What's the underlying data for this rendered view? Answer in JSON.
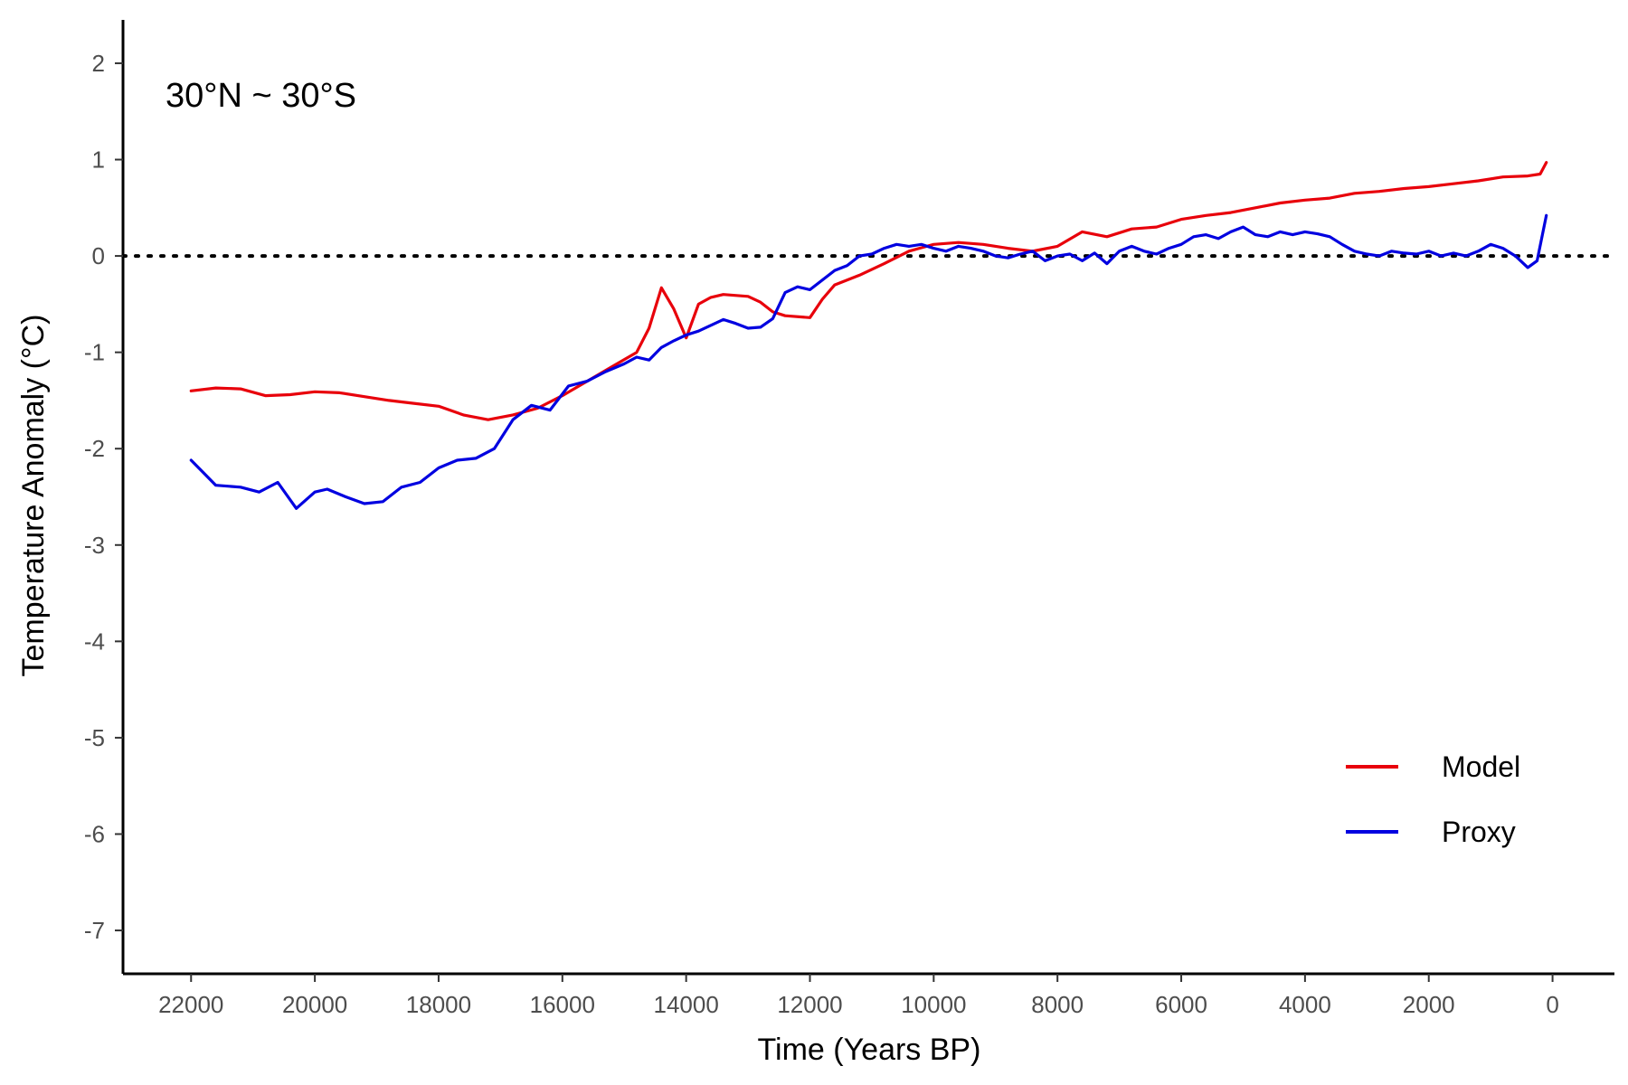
{
  "chart_data": {
    "type": "line",
    "annotation": "30°N ~ 30°S",
    "xlabel": "Time (Years BP)",
    "ylabel": "Temperature Anomaly (°C)",
    "xlim": [
      23100,
      -1000
    ],
    "ylim": [
      -7.45,
      2.45
    ],
    "x_reversed": true,
    "xticks": [
      22000,
      20000,
      18000,
      16000,
      14000,
      12000,
      10000,
      8000,
      6000,
      4000,
      2000,
      0
    ],
    "yticks": [
      2,
      1,
      0,
      -1,
      -2,
      -3,
      -4,
      -5,
      -6,
      -7
    ],
    "reference_line": {
      "y": 0,
      "style": "dotted",
      "color": "#000000"
    },
    "grid": false,
    "legend_position": "bottom-right",
    "series": [
      {
        "name": "Model",
        "color": "#e8000b",
        "points": [
          [
            22000,
            -1.4
          ],
          [
            21600,
            -1.37
          ],
          [
            21200,
            -1.38
          ],
          [
            20800,
            -1.45
          ],
          [
            20400,
            -1.44
          ],
          [
            20000,
            -1.41
          ],
          [
            19600,
            -1.42
          ],
          [
            19200,
            -1.46
          ],
          [
            18800,
            -1.5
          ],
          [
            18400,
            -1.53
          ],
          [
            18000,
            -1.56
          ],
          [
            17600,
            -1.65
          ],
          [
            17200,
            -1.7
          ],
          [
            16800,
            -1.65
          ],
          [
            16400,
            -1.58
          ],
          [
            16000,
            -1.45
          ],
          [
            15600,
            -1.3
          ],
          [
            15200,
            -1.15
          ],
          [
            14800,
            -1.0
          ],
          [
            14600,
            -0.75
          ],
          [
            14400,
            -0.33
          ],
          [
            14200,
            -0.55
          ],
          [
            14000,
            -0.85
          ],
          [
            13800,
            -0.5
          ],
          [
            13600,
            -0.43
          ],
          [
            13400,
            -0.4
          ],
          [
            13000,
            -0.42
          ],
          [
            12800,
            -0.48
          ],
          [
            12600,
            -0.58
          ],
          [
            12400,
            -0.62
          ],
          [
            12000,
            -0.64
          ],
          [
            11800,
            -0.45
          ],
          [
            11600,
            -0.3
          ],
          [
            11200,
            -0.2
          ],
          [
            10800,
            -0.08
          ],
          [
            10400,
            0.05
          ],
          [
            10000,
            0.12
          ],
          [
            9600,
            0.14
          ],
          [
            9200,
            0.12
          ],
          [
            8800,
            0.08
          ],
          [
            8400,
            0.05
          ],
          [
            8000,
            0.1
          ],
          [
            7600,
            0.25
          ],
          [
            7200,
            0.2
          ],
          [
            6800,
            0.28
          ],
          [
            6400,
            0.3
          ],
          [
            6000,
            0.38
          ],
          [
            5600,
            0.42
          ],
          [
            5200,
            0.45
          ],
          [
            4800,
            0.5
          ],
          [
            4400,
            0.55
          ],
          [
            4000,
            0.58
          ],
          [
            3600,
            0.6
          ],
          [
            3200,
            0.65
          ],
          [
            2800,
            0.67
          ],
          [
            2400,
            0.7
          ],
          [
            2000,
            0.72
          ],
          [
            1600,
            0.75
          ],
          [
            1200,
            0.78
          ],
          [
            800,
            0.82
          ],
          [
            400,
            0.83
          ],
          [
            200,
            0.85
          ],
          [
            100,
            0.97
          ]
        ]
      },
      {
        "name": "Proxy",
        "color": "#0000e0",
        "points": [
          [
            22000,
            -2.12
          ],
          [
            21800,
            -2.25
          ],
          [
            21600,
            -2.38
          ],
          [
            21200,
            -2.4
          ],
          [
            20900,
            -2.45
          ],
          [
            20600,
            -2.35
          ],
          [
            20300,
            -2.62
          ],
          [
            20000,
            -2.45
          ],
          [
            19800,
            -2.42
          ],
          [
            19500,
            -2.5
          ],
          [
            19200,
            -2.57
          ],
          [
            18900,
            -2.55
          ],
          [
            18600,
            -2.4
          ],
          [
            18300,
            -2.35
          ],
          [
            18000,
            -2.2
          ],
          [
            17700,
            -2.12
          ],
          [
            17400,
            -2.1
          ],
          [
            17100,
            -2.0
          ],
          [
            16800,
            -1.7
          ],
          [
            16500,
            -1.55
          ],
          [
            16200,
            -1.6
          ],
          [
            15900,
            -1.35
          ],
          [
            15600,
            -1.3
          ],
          [
            15300,
            -1.2
          ],
          [
            15000,
            -1.12
          ],
          [
            14800,
            -1.05
          ],
          [
            14600,
            -1.08
          ],
          [
            14400,
            -0.95
          ],
          [
            14200,
            -0.88
          ],
          [
            14000,
            -0.82
          ],
          [
            13800,
            -0.78
          ],
          [
            13600,
            -0.72
          ],
          [
            13400,
            -0.66
          ],
          [
            13200,
            -0.7
          ],
          [
            13000,
            -0.75
          ],
          [
            12800,
            -0.74
          ],
          [
            12600,
            -0.65
          ],
          [
            12400,
            -0.38
          ],
          [
            12200,
            -0.32
          ],
          [
            12000,
            -0.35
          ],
          [
            11800,
            -0.25
          ],
          [
            11600,
            -0.15
          ],
          [
            11400,
            -0.1
          ],
          [
            11200,
            0.0
          ],
          [
            11000,
            0.02
          ],
          [
            10800,
            0.08
          ],
          [
            10600,
            0.12
          ],
          [
            10400,
            0.1
          ],
          [
            10200,
            0.12
          ],
          [
            10000,
            0.08
          ],
          [
            9800,
            0.05
          ],
          [
            9600,
            0.1
          ],
          [
            9400,
            0.08
          ],
          [
            9200,
            0.05
          ],
          [
            9000,
            0.0
          ],
          [
            8800,
            -0.02
          ],
          [
            8600,
            0.02
          ],
          [
            8400,
            0.05
          ],
          [
            8200,
            -0.05
          ],
          [
            8000,
            0.0
          ],
          [
            7800,
            0.02
          ],
          [
            7600,
            -0.05
          ],
          [
            7400,
            0.03
          ],
          [
            7200,
            -0.08
          ],
          [
            7000,
            0.05
          ],
          [
            6800,
            0.1
          ],
          [
            6600,
            0.05
          ],
          [
            6400,
            0.02
          ],
          [
            6200,
            0.08
          ],
          [
            6000,
            0.12
          ],
          [
            5800,
            0.2
          ],
          [
            5600,
            0.22
          ],
          [
            5400,
            0.18
          ],
          [
            5200,
            0.25
          ],
          [
            5000,
            0.3
          ],
          [
            4800,
            0.22
          ],
          [
            4600,
            0.2
          ],
          [
            4400,
            0.25
          ],
          [
            4200,
            0.22
          ],
          [
            4000,
            0.25
          ],
          [
            3800,
            0.23
          ],
          [
            3600,
            0.2
          ],
          [
            3400,
            0.12
          ],
          [
            3200,
            0.05
          ],
          [
            3000,
            0.02
          ],
          [
            2800,
            0.0
          ],
          [
            2600,
            0.05
          ],
          [
            2400,
            0.03
          ],
          [
            2200,
            0.02
          ],
          [
            2000,
            0.05
          ],
          [
            1800,
            0.0
          ],
          [
            1600,
            0.03
          ],
          [
            1400,
            0.0
          ],
          [
            1200,
            0.05
          ],
          [
            1000,
            0.12
          ],
          [
            800,
            0.08
          ],
          [
            600,
            0.0
          ],
          [
            400,
            -0.12
          ],
          [
            250,
            -0.05
          ],
          [
            100,
            0.42
          ]
        ]
      }
    ]
  }
}
